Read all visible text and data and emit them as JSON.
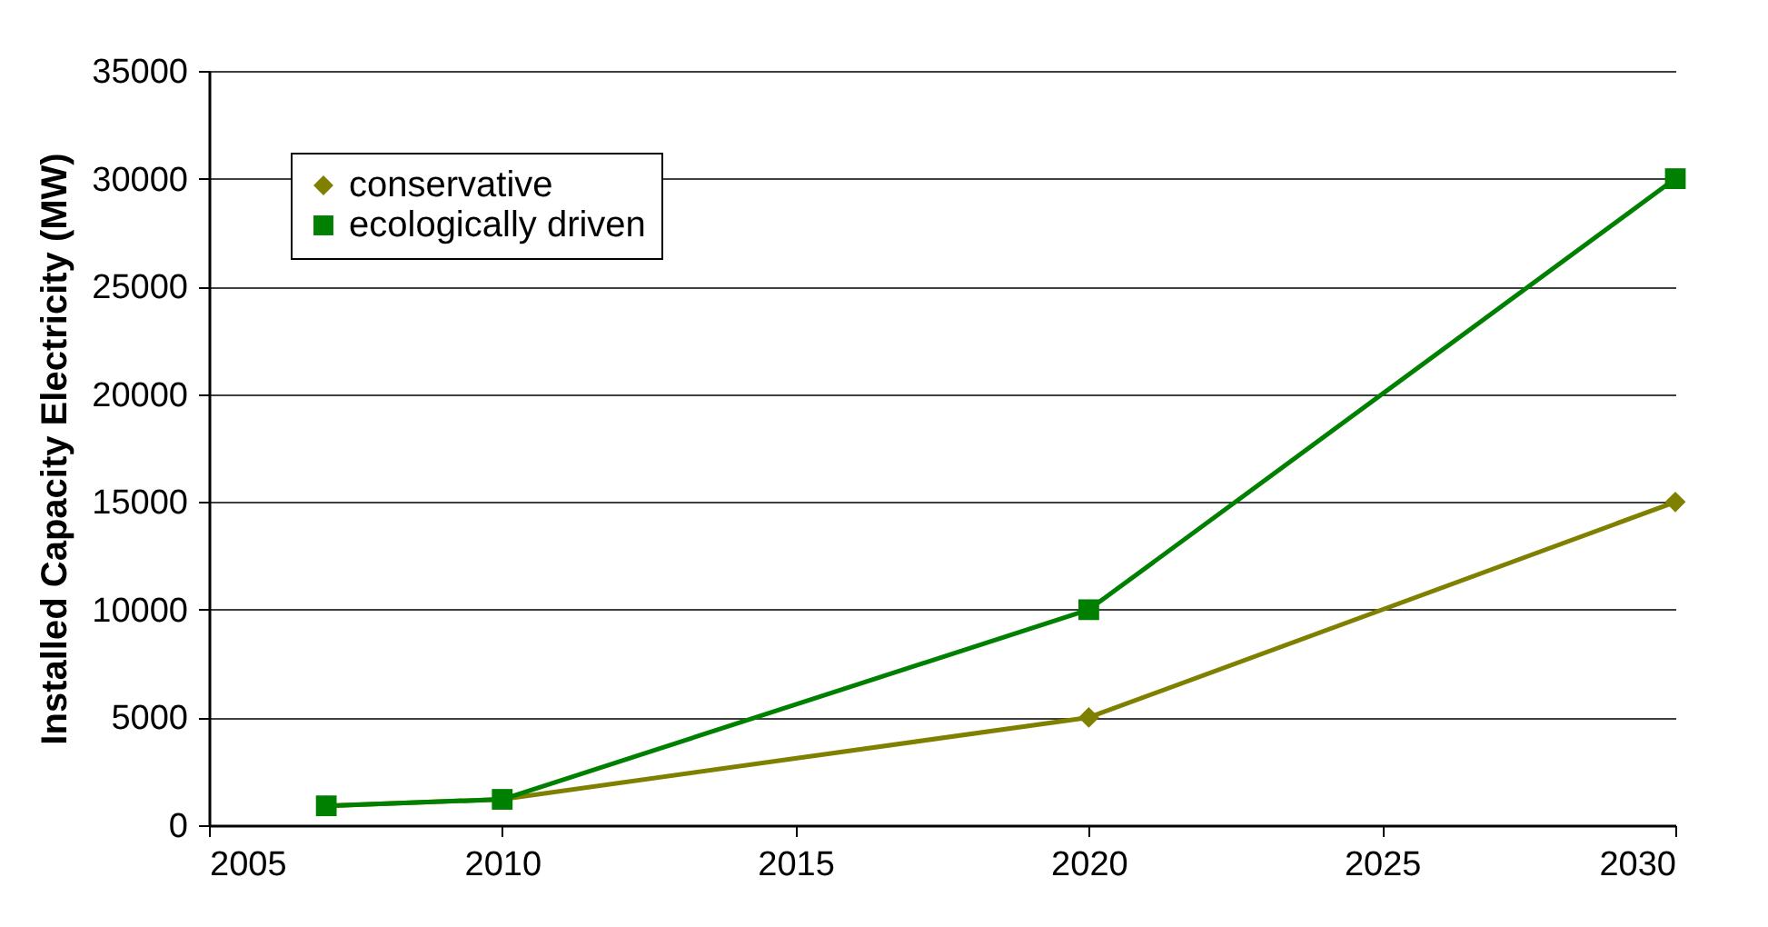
{
  "chart_data": {
    "type": "line",
    "ylabel": "Installed Capacity Electricity (MW)",
    "x": [
      2007,
      2010,
      2020,
      2030
    ],
    "xlim": [
      2005,
      2030
    ],
    "xticks": [
      2005,
      2010,
      2015,
      2020,
      2025,
      2030
    ],
    "ylim": [
      0,
      35000
    ],
    "yticks": [
      0,
      5000,
      10000,
      15000,
      20000,
      25000,
      30000,
      35000
    ],
    "grid": "y",
    "legend": "top left",
    "line_style": "solid",
    "series": [
      {
        "name": "conservative",
        "color": "#808000",
        "marker": "diamond",
        "values": [
          900,
          1200,
          5000,
          15000
        ]
      },
      {
        "name": "ecologically driven",
        "color": "#008000",
        "marker": "square",
        "values": [
          900,
          1200,
          10000,
          30000
        ]
      }
    ]
  }
}
